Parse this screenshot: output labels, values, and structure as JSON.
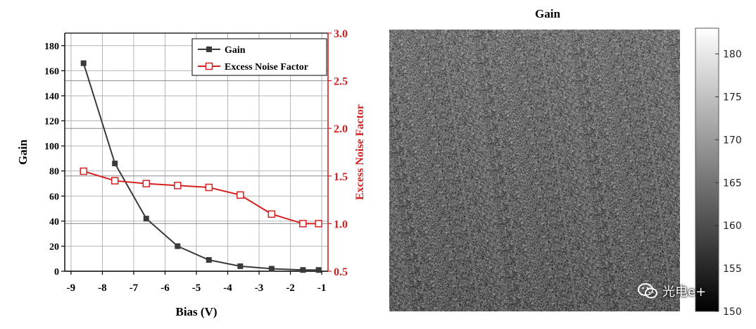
{
  "chart_data": [
    {
      "type": "line",
      "title": "",
      "xlabel": "Bias (V)",
      "ylabel": "Gain",
      "y2label": "Excess Noise Factor",
      "xlim": [
        -9.2,
        -0.8
      ],
      "ylim": [
        0,
        190
      ],
      "y2lim": [
        0.5,
        3.0
      ],
      "x_ticks": [
        "-9",
        "-8",
        "-7",
        "-6",
        "-5",
        "-4",
        "-3",
        "-2",
        "-1"
      ],
      "y_ticks": [
        "0",
        "20",
        "40",
        "60",
        "80",
        "100",
        "120",
        "140",
        "160",
        "180"
      ],
      "y2_ticks": [
        "0.5",
        "1.0",
        "1.5",
        "2.0",
        "2.5",
        "3.0"
      ],
      "legend_position": "top-right",
      "grid": true,
      "series": [
        {
          "name": "Gain",
          "axis": "left",
          "color": "#3a3a3a",
          "marker": "filled-square",
          "x": [
            -8.6,
            -7.6,
            -6.6,
            -5.6,
            -4.6,
            -3.6,
            -2.6,
            -1.6,
            -1.1
          ],
          "y": [
            166,
            86,
            42,
            20,
            9,
            4,
            2,
            1,
            1
          ]
        },
        {
          "name": "Excess Noise Factor",
          "axis": "right",
          "color": "#d42020",
          "marker": "open-square",
          "x": [
            -8.6,
            -7.6,
            -6.6,
            -5.6,
            -4.6,
            -3.6,
            -2.6,
            -1.6,
            -1.1
          ],
          "y": [
            1.55,
            1.45,
            1.42,
            1.4,
            1.38,
            1.3,
            1.1,
            1.0,
            1.0
          ]
        }
      ]
    },
    {
      "type": "heatmap",
      "title": "Gain",
      "colormap": "gray",
      "colorbar_ticks": [
        "150",
        "155",
        "160",
        "165",
        "170",
        "175",
        "180"
      ],
      "colorbar_range": [
        150,
        183
      ],
      "mean_value": 165
    }
  ],
  "watermark": {
    "text": "光电e+",
    "icon": "wechat-icon"
  },
  "colors": {
    "gain": "#3a3a3a",
    "enf": "#d42020",
    "grid": "#b4b4b4"
  }
}
